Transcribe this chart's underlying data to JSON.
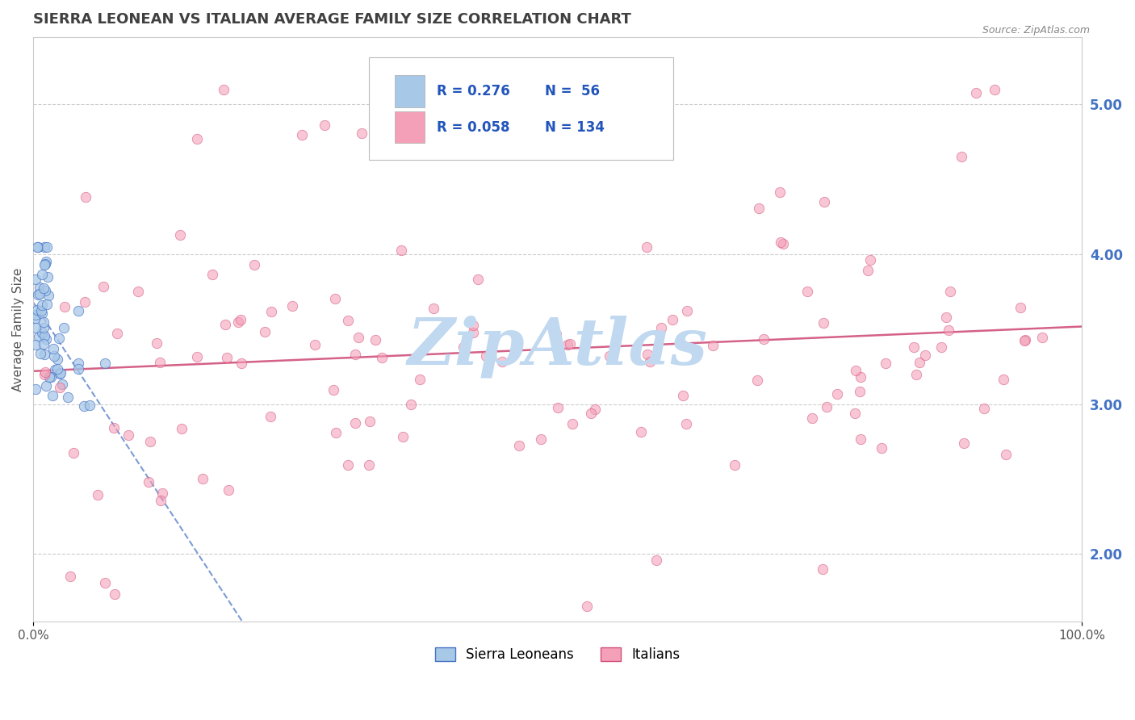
{
  "title": "SIERRA LEONEAN VS ITALIAN AVERAGE FAMILY SIZE CORRELATION CHART",
  "source": "Source: ZipAtlas.com",
  "ylabel": "Average Family Size",
  "xlim": [
    0.0,
    1.0
  ],
  "ylim": [
    1.55,
    5.45
  ],
  "right_yticks": [
    2.0,
    3.0,
    4.0,
    5.0
  ],
  "xtick_labels": [
    "0.0%",
    "100.0%"
  ],
  "legend_labels": [
    "Sierra Leoneans",
    "Italians"
  ],
  "sierra_color": "#a8c8e8",
  "italian_color": "#f4a0b8",
  "sierra_line_color": "#4472c4",
  "italian_line_color": "#d0507a",
  "background_color": "#ffffff",
  "grid_color": "#cccccc",
  "title_color": "#404040",
  "axis_color": "#cccccc",
  "watermark": "ZipAtlas",
  "watermark_color": "#c0d8f0",
  "legend_r1": "R = 0.276",
  "legend_n1": "N =  56",
  "legend_r2": "R = 0.058",
  "legend_n2": "N = 134"
}
